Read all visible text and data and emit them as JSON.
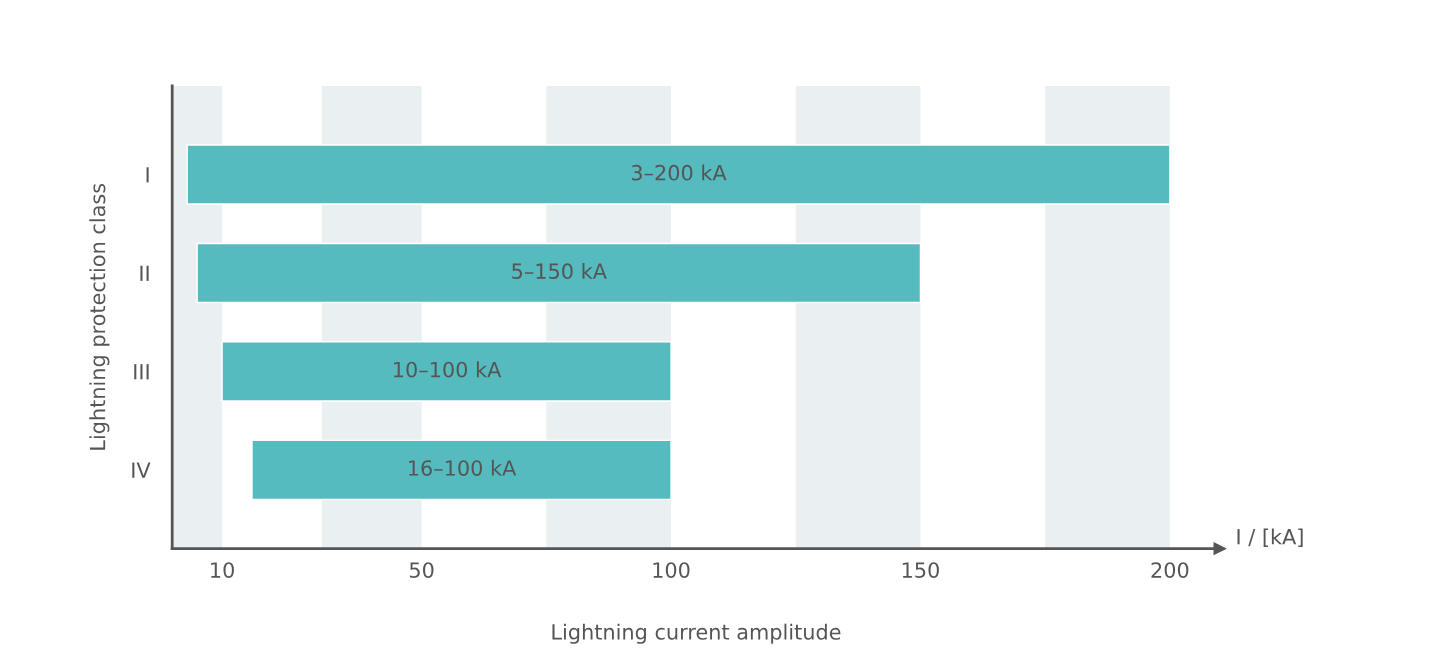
{
  "chart_data": {
    "type": "bar",
    "orientation": "horizontal",
    "categories": [
      "I",
      "II",
      "III",
      "IV"
    ],
    "base": [
      3,
      5,
      10,
      16
    ],
    "values": [
      197,
      145,
      90,
      84
    ],
    "value_labels": [
      "3–200 kA",
      "5–150 kA",
      "10–100 kA",
      "16–100 kA"
    ],
    "color": "#56bbbf",
    "xlabel": "Lightning current amplitude",
    "ylabel": "Lightning protection class",
    "xlim": [
      0,
      210
    ],
    "xticks": [
      10,
      50,
      100,
      150,
      200
    ],
    "bands": [
      {
        "axis": "x",
        "from": 0,
        "to": 10,
        "color": "#eaeff2"
      },
      {
        "axis": "x",
        "from": 30,
        "to": 50,
        "color": "#eaeff2"
      },
      {
        "axis": "x",
        "from": 75,
        "to": 100,
        "color": "#eaeff2"
      },
      {
        "axis": "x",
        "from": 125,
        "to": 150,
        "color": "#eaeff2"
      },
      {
        "axis": "x",
        "from": 175,
        "to": 200,
        "color": "#eaeff2"
      }
    ],
    "annotations": [
      "I / [kA]"
    ],
    "grid": false
  }
}
